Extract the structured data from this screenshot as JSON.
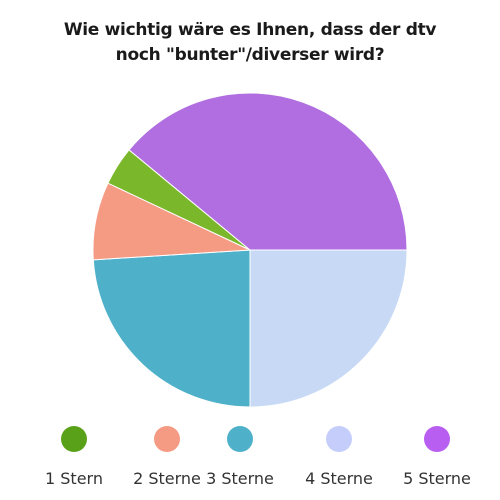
{
  "chart_data": {
    "type": "pie",
    "title_lines": [
      "Wie wichtig wäre es Ihnen, dass der dtv",
      "noch \"bunter\"/diverser wird?"
    ],
    "categories": [
      "1 Stern",
      "2 Sterne",
      "3 Sterne",
      "4 Sterne",
      "5 Sterne"
    ],
    "values": [
      4,
      8,
      24,
      25,
      39
    ],
    "unit": "%",
    "colors": [
      "#7ab72b",
      "#f59a83",
      "#4eb1c9",
      "#c7d9f5",
      "#b06ee0"
    ],
    "legend_colors": [
      "#5aa11a",
      "#f59a83",
      "#4eb1c9",
      "#c5cdfb",
      "#b85ef0"
    ],
    "legend_position": "bottom"
  }
}
